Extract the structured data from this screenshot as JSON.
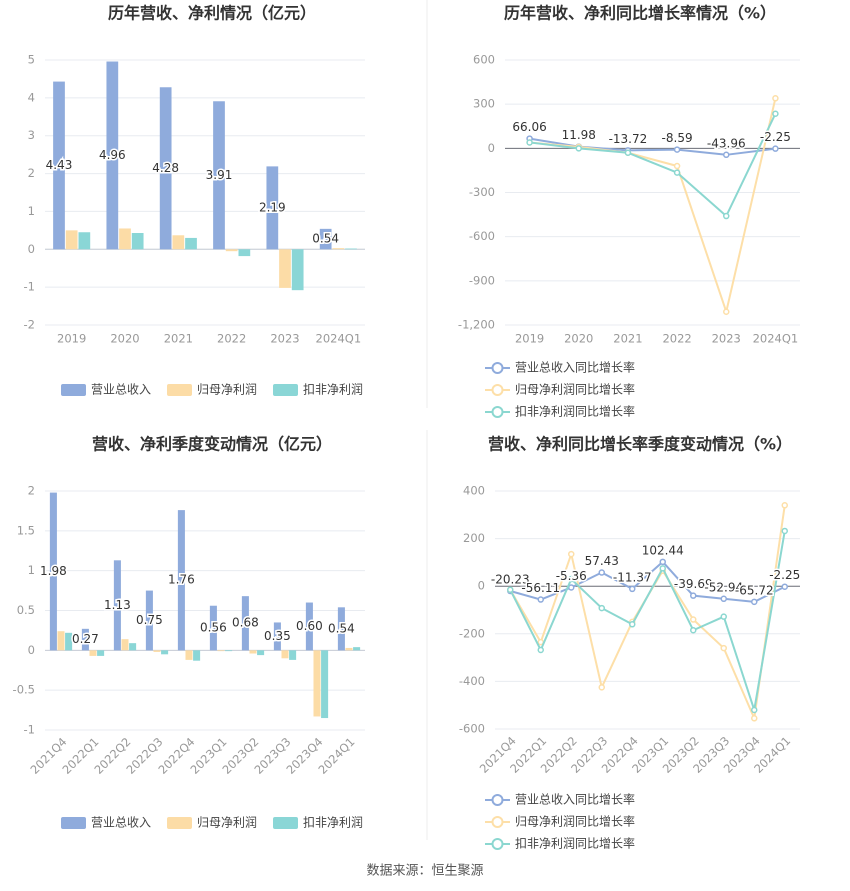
{
  "chart_data": [
    {
      "type": "bar",
      "title": "历年营收、净利情况（亿元）",
      "categories": [
        "2019",
        "2020",
        "2021",
        "2022",
        "2023",
        "2024Q1"
      ],
      "series": [
        {
          "name": "营业总收入",
          "color": "#8fabdc",
          "data_labels": true,
          "values": [
            4.43,
            4.96,
            4.28,
            3.91,
            2.19,
            0.54
          ]
        },
        {
          "name": "归母净利润",
          "color": "#fcdca6",
          "values": [
            0.5,
            0.55,
            0.37,
            -0.05,
            -1.02,
            0.03
          ]
        },
        {
          "name": "扣非净利润",
          "color": "#8ad6d6",
          "values": [
            0.45,
            0.43,
            0.3,
            -0.18,
            -1.08,
            0.02
          ]
        }
      ],
      "ylim": [
        -2,
        5
      ],
      "yticks": [
        -2,
        -1,
        0,
        1,
        2,
        3,
        4,
        5
      ],
      "grid": true
    },
    {
      "type": "line",
      "title": "历年营收、净利同比增长率情况（%）",
      "categories": [
        "2019",
        "2020",
        "2021",
        "2022",
        "2023",
        "2024Q1"
      ],
      "series": [
        {
          "name": "营业总收入同比增长率",
          "color": "#8fabdc",
          "data_labels": true,
          "values": [
            66.06,
            11.98,
            -13.72,
            -8.59,
            -43.96,
            -2.25
          ]
        },
        {
          "name": "归母净利润同比增长率",
          "color": "#fddfa8",
          "values": [
            40,
            10,
            -30,
            -120,
            -1110,
            340
          ]
        },
        {
          "name": "扣非净利润同比增长率",
          "color": "#8bd7d0",
          "values": [
            40,
            0,
            -30,
            -165,
            -460,
            235
          ]
        }
      ],
      "ylim": [
        -1200,
        600
      ],
      "yticks": [
        {
          "value": -1200,
          "label": "-1,200"
        },
        -900,
        -600,
        -300,
        0,
        300,
        600
      ],
      "grid": true
    },
    {
      "type": "bar",
      "title": "营收、净利季度变动情况（亿元）",
      "categories": [
        "2021Q4",
        "2022Q1",
        "2022Q2",
        "2022Q3",
        "2022Q4",
        "2023Q1",
        "2023Q2",
        "2023Q3",
        "2023Q4",
        "2024Q1"
      ],
      "series": [
        {
          "name": "营业总收入",
          "color": "#8fabdc",
          "data_labels": true,
          "values": [
            1.98,
            0.27,
            1.13,
            0.75,
            1.76,
            0.56,
            0.68,
            0.35,
            0.6,
            0.54
          ],
          "value_labels": [
            "1.98",
            "0.27",
            "1.13",
            "0.75",
            "1.76",
            "0.56",
            "0.68",
            "0.35",
            "0.60",
            "0.54"
          ]
        },
        {
          "name": "归母净利润",
          "color": "#fcdca6",
          "values": [
            0.24,
            -0.07,
            0.14,
            -0.02,
            -0.12,
            -0.01,
            -0.04,
            -0.1,
            -0.83,
            0.03
          ]
        },
        {
          "name": "扣非净利润",
          "color": "#8ad6d6",
          "values": [
            0.22,
            -0.07,
            0.09,
            -0.05,
            -0.13,
            -0.01,
            -0.06,
            -0.12,
            -0.85,
            0.04
          ]
        }
      ],
      "ylim": [
        -1,
        2
      ],
      "yticks": [
        -1,
        -0.5,
        0,
        0.5,
        1,
        1.5,
        2
      ],
      "grid": true
    },
    {
      "type": "line",
      "title": "营收、净利同比增长率季度变动情况（%）",
      "categories": [
        "2021Q4",
        "2022Q1",
        "2022Q2",
        "2022Q3",
        "2022Q4",
        "2023Q1",
        "2023Q2",
        "2023Q3",
        "2023Q4",
        "2024Q1"
      ],
      "series": [
        {
          "name": "营业总收入同比增长率",
          "color": "#8fabdc",
          "data_labels": true,
          "values": [
            -20.23,
            -56.11,
            -5.36,
            57.43,
            -11.37,
            102.44,
            -39.69,
            -52.94,
            -65.72,
            -2.25
          ]
        },
        {
          "name": "归母净利润同比增长率",
          "color": "#fddfa8",
          "values": [
            -15,
            -235,
            135,
            -425,
            -150,
            65,
            -140,
            -260,
            -555,
            340
          ]
        },
        {
          "name": "扣非净利润同比增长率",
          "color": "#8bd7d0",
          "values": [
            -15,
            -268,
            30,
            -92,
            -160,
            75,
            -185,
            -128,
            -520,
            232
          ]
        }
      ],
      "ylim": [
        -600,
        400
      ],
      "yticks": [
        -600,
        -400,
        -200,
        0,
        200,
        400
      ],
      "grid": true
    }
  ],
  "source": "数据来源：恒生聚源"
}
